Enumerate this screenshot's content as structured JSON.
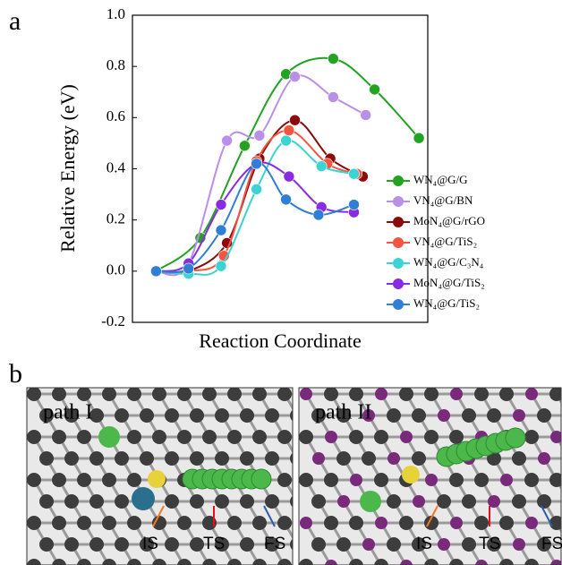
{
  "chart_data": {
    "type": "line",
    "y_label": "Relative Energy (eV)",
    "x_label": "Reaction Coordinate",
    "xlim": [
      0,
      10
    ],
    "ylim": [
      -0.2,
      1.0
    ],
    "yticks": [
      -0.2,
      {
        "value": 0.0,
        "label": "0.0"
      },
      0.2,
      0.4,
      0.6,
      0.8,
      {
        "value": 1.0,
        "label": "1.0"
      }
    ],
    "series": [
      {
        "name": "WN₄@G/G",
        "color": "#22a322",
        "x": [
          0.8,
          2.3,
          3.8,
          5.2,
          6.8,
          8.2,
          9.7
        ],
        "values": [
          0.0,
          0.13,
          0.49,
          0.77,
          0.83,
          0.71,
          0.52
        ]
      },
      {
        "name": "VN₄@G/BN",
        "color": "#b98fe8",
        "x": [
          0.8,
          1.9,
          3.2,
          4.3,
          5.5,
          6.8,
          7.9
        ],
        "values": [
          0.0,
          0.03,
          0.51,
          0.53,
          0.76,
          0.68,
          0.61
        ]
      },
      {
        "name": "MoN₄@G/rGO",
        "color": "#8b0a0a",
        "x": [
          0.8,
          1.9,
          3.2,
          4.3,
          5.5,
          6.7,
          7.8
        ],
        "values": [
          0.0,
          0.0,
          0.11,
          0.44,
          0.59,
          0.44,
          0.37
        ]
      },
      {
        "name": "VN₄@G/TiS₂",
        "color": "#f25540",
        "x": [
          0.8,
          1.9,
          3.1,
          4.2,
          5.3,
          6.6,
          7.6
        ],
        "values": [
          0.0,
          0.0,
          0.06,
          0.43,
          0.55,
          0.42,
          0.38
        ]
      },
      {
        "name": "WN₄@G/C₃N₄",
        "color": "#3cd3d3",
        "x": [
          0.8,
          1.9,
          3.0,
          4.2,
          5.2,
          6.4,
          7.5
        ],
        "values": [
          0.0,
          -0.01,
          0.02,
          0.32,
          0.51,
          0.41,
          0.38
        ]
      },
      {
        "name": "MoN₄@G/TiS₂",
        "color": "#8a2be2",
        "x": [
          0.8,
          1.9,
          3.0,
          4.2,
          5.3,
          6.4,
          7.5
        ],
        "values": [
          0.0,
          0.03,
          0.26,
          0.42,
          0.37,
          0.25,
          0.23
        ]
      },
      {
        "name": "WN₄@G/TiS₂",
        "color": "#2f7fd6",
        "x": [
          0.8,
          1.9,
          3.0,
          4.2,
          5.2,
          6.3,
          7.5
        ],
        "values": [
          0.0,
          0.01,
          0.16,
          0.42,
          0.28,
          0.22,
          0.26
        ]
      }
    ]
  },
  "figure": {
    "panel_a": "a",
    "panel_b": "b",
    "paths": [
      {
        "title": "path I",
        "labels": [
          "IS",
          "TS",
          "FS"
        ]
      },
      {
        "title": "path II",
        "labels": [
          "IS",
          "TS",
          "FS"
        ]
      }
    ]
  }
}
